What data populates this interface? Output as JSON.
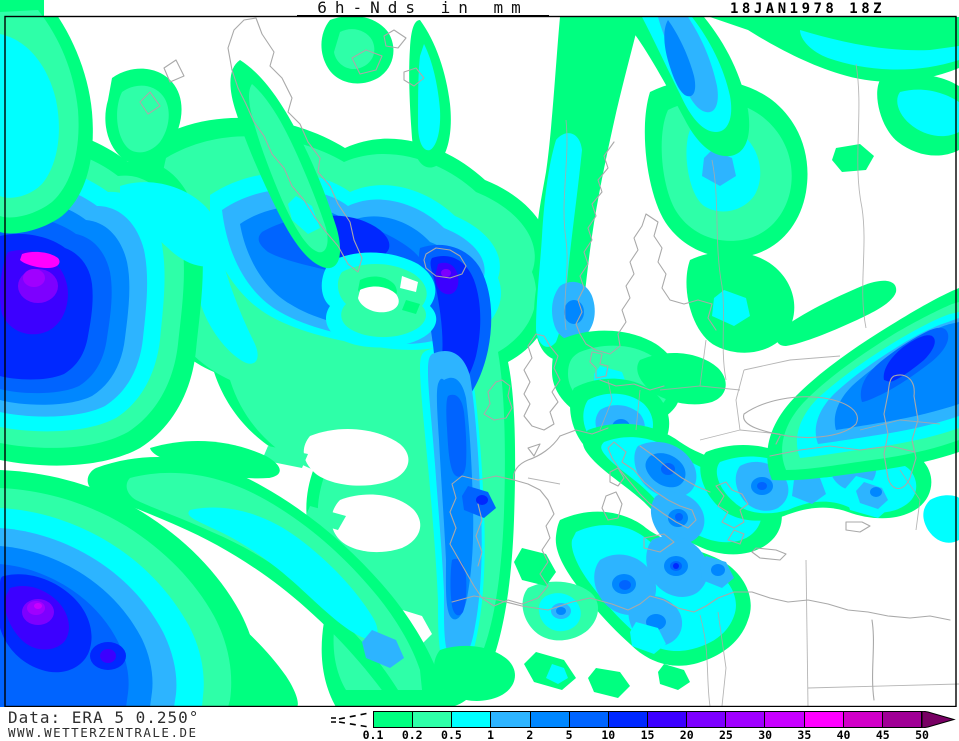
{
  "header": {
    "title": "6h-Nds in mm",
    "timestamp": "18JAN1978 18Z"
  },
  "footer": {
    "credit_line1": "Data: ERA 5 0.250°",
    "credit_line2": "WWW.WETTERZENTRALE.DE",
    "legend": {
      "unit": "mm",
      "tick_labels": [
        "0.1",
        "0.2",
        "0.5",
        "1",
        "2",
        "5",
        "10",
        "15",
        "20",
        "25",
        "30",
        "35",
        "40",
        "45",
        "50"
      ],
      "cell_colors": [
        "#00ff80",
        "#2effa8",
        "#00ffff",
        "#2db4ff",
        "#0087ff",
        "#0064ff",
        "#0028ff",
        "#3c00ff",
        "#7d00ff",
        "#a000ff",
        "#c800ff",
        "#ff00ff",
        "#d200c8",
        "#a00096"
      ],
      "overflow_arrow_color": "#780064"
    }
  },
  "map": {
    "description": "Filled 6-hour precipitation contours over the North Atlantic, Europe and North Africa",
    "background_color": "#ffffff",
    "coastline_color": "#a9a9a9",
    "frame_color": "#000000"
  }
}
